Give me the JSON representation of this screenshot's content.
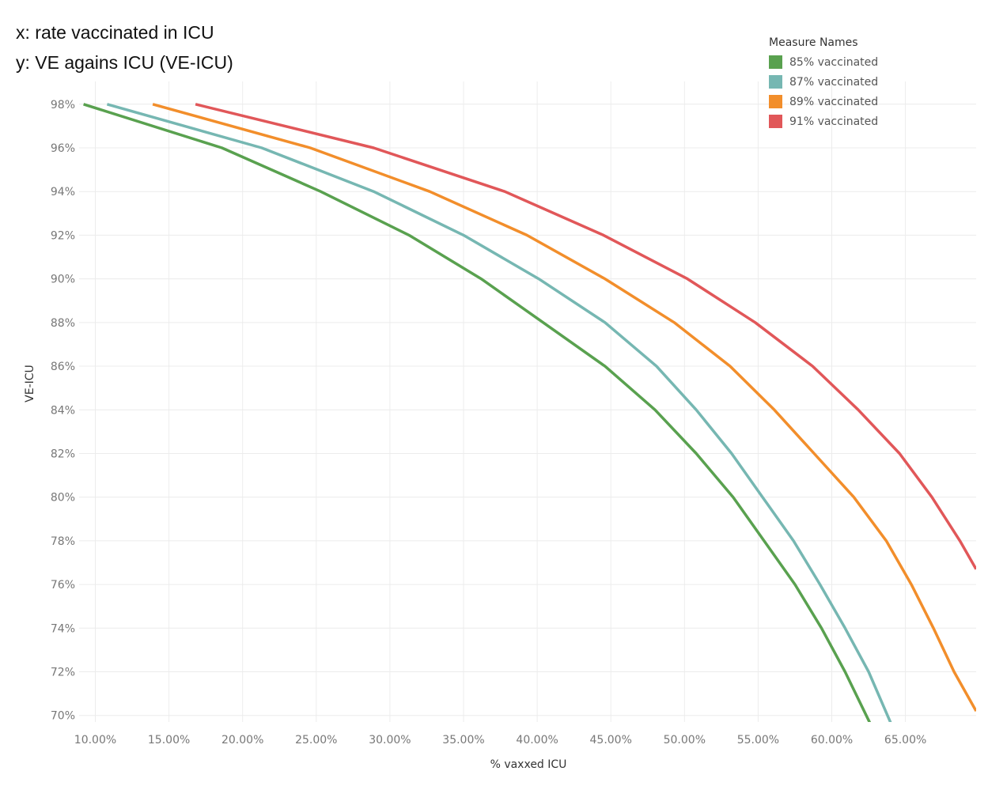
{
  "notes": {
    "line1": "x: rate vaccinated in ICU",
    "line2": "y: VE agains ICU (VE-ICU)"
  },
  "legend": {
    "title": "Measure Names",
    "items": [
      {
        "label": "85% vaccinated",
        "color": "#59a14f"
      },
      {
        "label": "87% vaccinated",
        "color": "#76b7b2"
      },
      {
        "label": "89% vaccinated",
        "color": "#f28e2b"
      },
      {
        "label": "91% vaccinated",
        "color": "#e15759"
      }
    ]
  },
  "chart_data": {
    "type": "line",
    "xlabel": "% vaxxed ICU",
    "ylabel": "VE-ICU",
    "xlim": [
      8.9,
      69.8
    ],
    "ylim": [
      69.7,
      98.5
    ],
    "grid": true,
    "legend_position": "top-right",
    "x_ticks": [
      10,
      15,
      20,
      25,
      30,
      35,
      40,
      45,
      50,
      55,
      60,
      65
    ],
    "x_tick_labels": [
      "10.00%",
      "15.00%",
      "20.00%",
      "25.00%",
      "30.00%",
      "35.00%",
      "40.00%",
      "45.00%",
      "50.00%",
      "55.00%",
      "60.00%",
      "65.00%"
    ],
    "y_ticks": [
      70,
      72,
      74,
      76,
      78,
      80,
      82,
      84,
      86,
      88,
      90,
      92,
      94,
      96,
      98
    ],
    "y_tick_labels": [
      "70%",
      "72%",
      "74%",
      "76%",
      "78%",
      "80%",
      "82%",
      "84%",
      "86%",
      "88%",
      "90%",
      "92%",
      "94%",
      "96%",
      "98%"
    ],
    "series": [
      {
        "name": "85% vaccinated",
        "color": "#59a14f",
        "points": [
          [
            9.2,
            98
          ],
          [
            18.6,
            96
          ],
          [
            25.3,
            94
          ],
          [
            31.3,
            92
          ],
          [
            36.2,
            90
          ],
          [
            40.4,
            88
          ],
          [
            44.6,
            86
          ],
          [
            48,
            84
          ],
          [
            50.8,
            82
          ],
          [
            53.3,
            80
          ],
          [
            55.4,
            78
          ],
          [
            57.5,
            76
          ],
          [
            59.3,
            74
          ],
          [
            60.9,
            72
          ],
          [
            62.7,
            69.5
          ]
        ]
      },
      {
        "name": "87% vaccinated",
        "color": "#76b7b2",
        "points": [
          [
            10.8,
            98
          ],
          [
            21.3,
            96
          ],
          [
            28.9,
            94
          ],
          [
            35,
            92
          ],
          [
            40.1,
            90
          ],
          [
            44.6,
            88
          ],
          [
            48.1,
            86
          ],
          [
            50.8,
            84
          ],
          [
            53.2,
            82
          ],
          [
            55.3,
            80
          ],
          [
            57.4,
            78
          ],
          [
            59.2,
            76
          ],
          [
            60.9,
            74
          ],
          [
            62.5,
            72
          ],
          [
            64.1,
            69.5
          ]
        ]
      },
      {
        "name": "87% vaccinated",
        "color": "#76b7b2",
        "points": []
      }
    ]
  }
}
